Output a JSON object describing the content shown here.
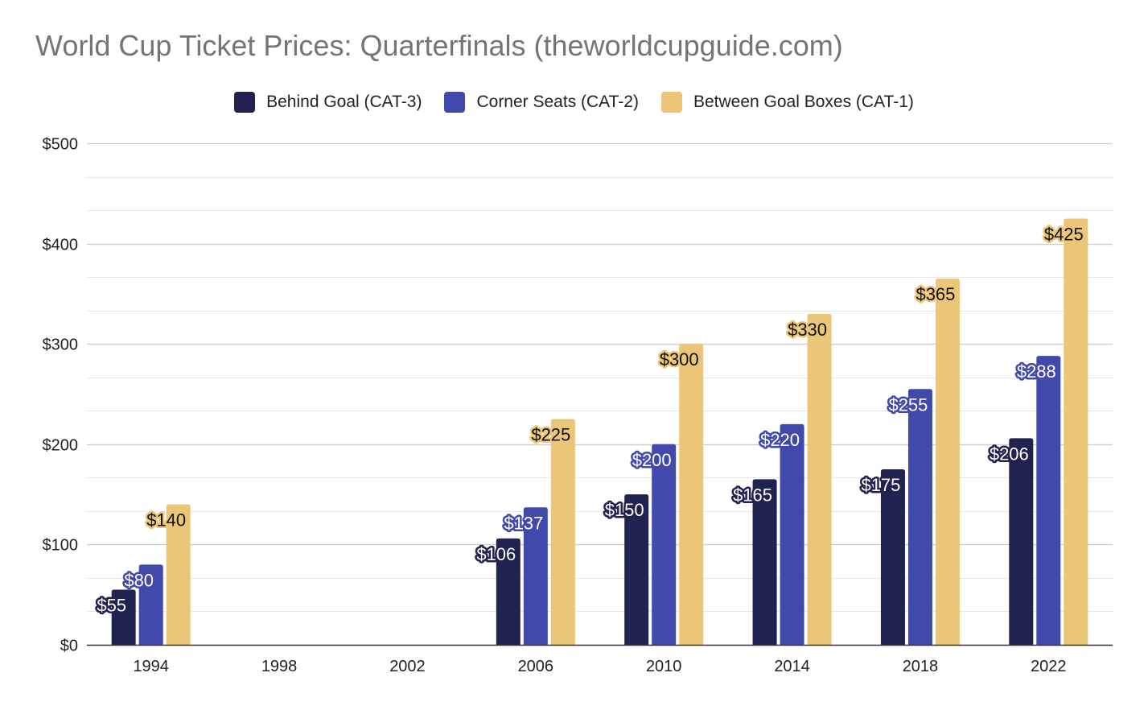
{
  "chart_data": {
    "type": "bar",
    "title": "World Cup Ticket Prices: Quarterfinals (theworldcupguide.com)",
    "xlabel": "",
    "ylabel": "",
    "categories": [
      "1994",
      "1998",
      "2002",
      "2006",
      "2010",
      "2014",
      "2018",
      "2022"
    ],
    "series": [
      {
        "name": "Behind Goal (CAT-3)",
        "color": "#20224f",
        "values": [
          55,
          null,
          null,
          106,
          150,
          165,
          175,
          206
        ],
        "labels": [
          "$55",
          "",
          "",
          "$106",
          "$150",
          "$165",
          "$175",
          "$206"
        ]
      },
      {
        "name": "Corner Seats (CAT-2)",
        "color": "#4149ad",
        "values": [
          80,
          null,
          null,
          137,
          200,
          220,
          255,
          288
        ],
        "labels": [
          "$80",
          "",
          "",
          "$137",
          "$200",
          "$220",
          "$255",
          "$288"
        ]
      },
      {
        "name": "Between Goal Boxes (CAT-1)",
        "color": "#ecc678",
        "values": [
          140,
          null,
          null,
          225,
          300,
          330,
          365,
          425
        ],
        "labels": [
          "$140",
          "",
          "",
          "$225",
          "$300",
          "$330",
          "$365",
          "$425"
        ]
      }
    ],
    "ylim": [
      0,
      500
    ],
    "y_ticks": [
      0,
      100,
      200,
      300,
      400,
      500
    ],
    "y_tick_labels": [
      "$0",
      "$100",
      "$200",
      "$300",
      "$400",
      "$500"
    ],
    "grid": true,
    "minor_grid": true,
    "legend_position": "top-center",
    "colors": {
      "major_grid": "#cccccc",
      "minor_grid": "#e6e6e6",
      "axis": "#333333"
    }
  }
}
